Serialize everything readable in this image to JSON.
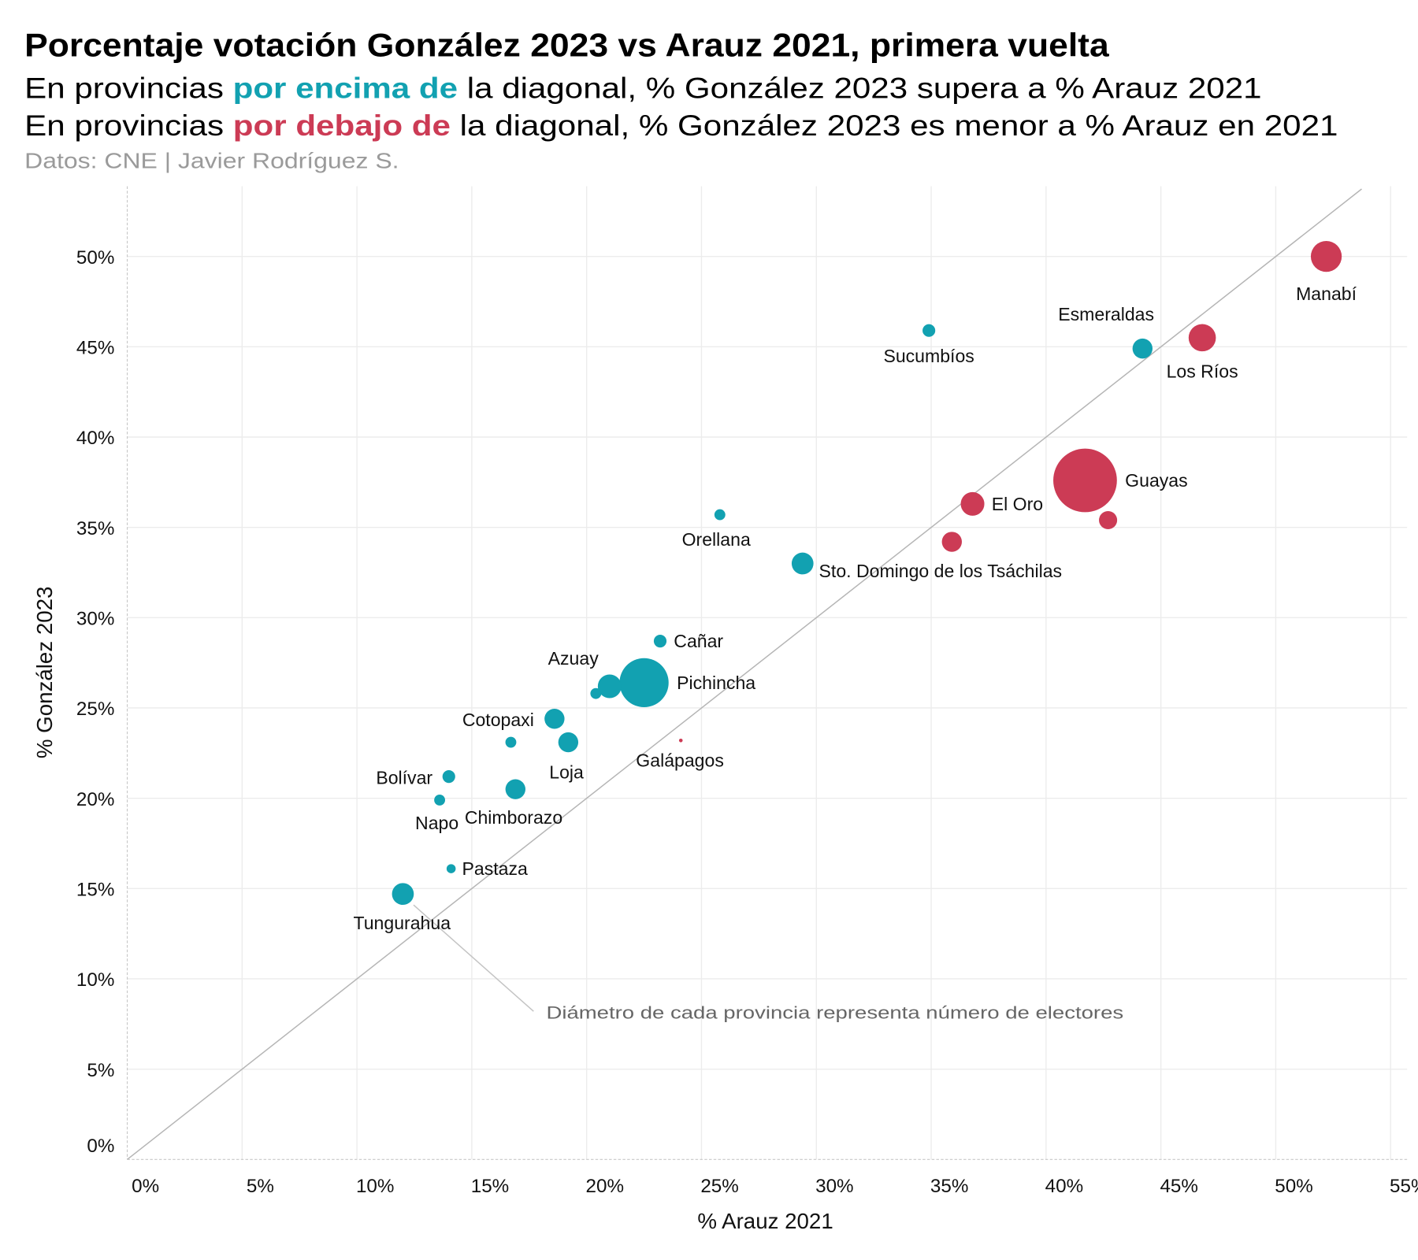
{
  "header": {
    "title": "Porcentaje votación González 2023 vs Arauz 2021, primera vuelta",
    "line1": {
      "pre": "En provincias ",
      "hl": "por encima de",
      "post": " la diagonal, % González 2023 supera a % Arauz 2021"
    },
    "line2": {
      "pre": "En provincias ",
      "hl": "por debajo de",
      "post": " la diagonal, % González 2023 es menor a % Arauz en 2021"
    },
    "source": "Datos: CNE | Javier Rodríguez S."
  },
  "colors": {
    "above": "#12a1b1",
    "below": "#cc3b55"
  },
  "chart_data": {
    "type": "scatter",
    "title": "Porcentaje votación González 2023 vs Arauz 2021, primera vuelta",
    "xlabel": "% Arauz 2021",
    "ylabel": "% González 2023",
    "xlim": [
      0,
      55
    ],
    "ylim": [
      0,
      53
    ],
    "x_ticks": [
      "0%",
      "5%",
      "10%",
      "15%",
      "20%",
      "25%",
      "30%",
      "35%",
      "40%",
      "45%",
      "50%",
      "55%"
    ],
    "y_ticks": [
      "0%",
      "5%",
      "10%",
      "15%",
      "20%",
      "25%",
      "30%",
      "35%",
      "40%",
      "45%",
      "50%"
    ],
    "grid": true,
    "reference_line": "y = x",
    "annotation": "Diámetro de cada provincia representa número de electores",
    "points": [
      {
        "name": "Manabí",
        "x": 52.2,
        "y": 50.0,
        "size": 17,
        "group": "below"
      },
      {
        "name": "Los Ríos",
        "x": 46.8,
        "y": 45.5,
        "size": 15,
        "group": "below"
      },
      {
        "name": "Esmeraldas",
        "x": 44.2,
        "y": 44.9,
        "size": 11,
        "group": "above"
      },
      {
        "name": "Sucumbíos",
        "x": 34.9,
        "y": 45.9,
        "size": 7,
        "group": "above"
      },
      {
        "name": "Guayas",
        "x": 41.7,
        "y": 37.6,
        "size": 35,
        "group": "below"
      },
      {
        "name": "",
        "x": 42.7,
        "y": 35.4,
        "size": 10,
        "group": "below"
      },
      {
        "name": "El Oro",
        "x": 36.8,
        "y": 36.3,
        "size": 13,
        "group": "below"
      },
      {
        "name": "",
        "x": 35.9,
        "y": 34.2,
        "size": 11,
        "group": "below"
      },
      {
        "name": "Orellana",
        "x": 25.8,
        "y": 35.7,
        "size": 6,
        "group": "above"
      },
      {
        "name": "Sto. Domingo de los Tsáchilas",
        "x": 29.4,
        "y": 33.0,
        "size": 12,
        "group": "above"
      },
      {
        "name": "Cañar",
        "x": 23.2,
        "y": 28.7,
        "size": 7,
        "group": "above"
      },
      {
        "name": "Pichincha",
        "x": 22.5,
        "y": 26.4,
        "size": 27,
        "group": "above"
      },
      {
        "name": "Azuay",
        "x": 21.0,
        "y": 26.2,
        "size": 13,
        "group": "above"
      },
      {
        "name": "",
        "x": 20.4,
        "y": 25.8,
        "size": 6,
        "group": "above"
      },
      {
        "name": "Cotopaxi",
        "x": 18.6,
        "y": 24.4,
        "size": 11,
        "group": "above"
      },
      {
        "name": "Loja",
        "x": 19.2,
        "y": 23.1,
        "size": 11,
        "group": "above"
      },
      {
        "name": "",
        "x": 16.7,
        "y": 23.1,
        "size": 6,
        "group": "above"
      },
      {
        "name": "Galápagos",
        "x": 24.1,
        "y": 23.2,
        "size": 2,
        "group": "below"
      },
      {
        "name": "Bolívar",
        "x": 14.0,
        "y": 21.2,
        "size": 7,
        "group": "above"
      },
      {
        "name": "Chimborazo",
        "x": 16.9,
        "y": 20.5,
        "size": 11,
        "group": "above"
      },
      {
        "name": "Napo",
        "x": 13.6,
        "y": 19.9,
        "size": 6,
        "group": "above"
      },
      {
        "name": "Pastaza",
        "x": 14.1,
        "y": 16.1,
        "size": 5,
        "group": "above"
      },
      {
        "name": "Tungurahua",
        "x": 12.0,
        "y": 14.7,
        "size": 12,
        "group": "above"
      }
    ]
  }
}
